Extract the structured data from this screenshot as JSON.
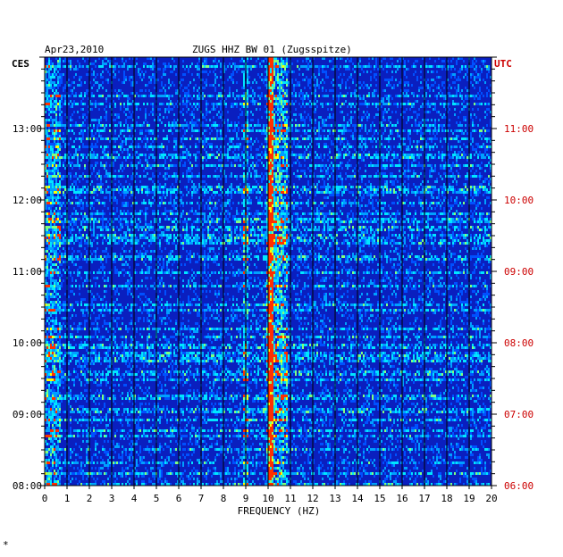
{
  "chart_data": {
    "type": "heatmap",
    "title_date": "Apr23,2010",
    "title_station": "ZUGS HHZ BW 01 (Zugsspitze)",
    "left_timezone": "CES",
    "right_timezone": "UTC",
    "xlabel": "FREQUENCY (HZ)",
    "xlim": [
      0,
      20
    ],
    "x_ticks": [
      "0",
      "1",
      "2",
      "3",
      "4",
      "5",
      "6",
      "7",
      "8",
      "9",
      "10",
      "11",
      "12",
      "13",
      "14",
      "15",
      "16",
      "17",
      "18",
      "19",
      "20"
    ],
    "left_time_ticks": [
      "13:00",
      "12:00",
      "11:00",
      "10:00",
      "09:00",
      "08:00"
    ],
    "right_time_ticks": [
      "11:00",
      "10:00",
      "09:00",
      "08:00",
      "07:00",
      "06:00"
    ],
    "time_range_ces": [
      "08:00",
      "14:00"
    ],
    "colors": {
      "background": "#0a1fbf",
      "low": "#0000a0",
      "mid": "#00aaff",
      "high": "#00ffff",
      "peak": "#ffff00",
      "max": "#ff2000",
      "axis": "#000000",
      "utc_text": "#cc0000"
    },
    "dominant_band_hz": [
      9.9,
      10.8
    ]
  },
  "footer_mark": "*"
}
